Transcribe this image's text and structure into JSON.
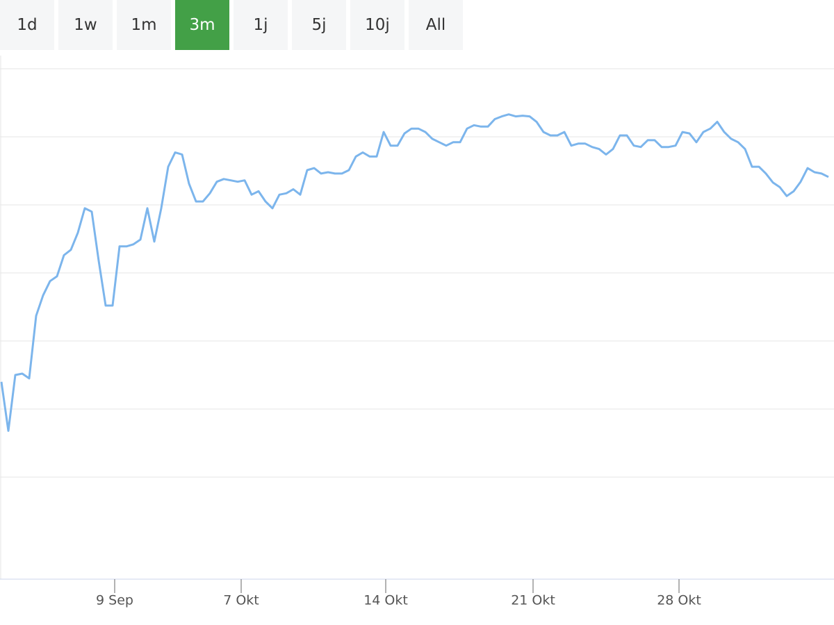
{
  "range_buttons": {
    "labels": [
      "1d",
      "1w",
      "1m",
      "3m",
      "1j",
      "5j",
      "10j",
      "All"
    ],
    "selected": 3,
    "color": "#43a047"
  },
  "chart_data": {
    "type": "line",
    "color": "#7cb5ec",
    "grid": true,
    "values": [
      2.9,
      2.18,
      3.0,
      3.02,
      2.95,
      3.87,
      4.17,
      4.38,
      4.45,
      4.76,
      4.84,
      5.09,
      5.45,
      5.4,
      4.68,
      4.02,
      4.02,
      4.89,
      4.89,
      4.92,
      4.99,
      5.45,
      4.96,
      5.45,
      6.06,
      6.27,
      6.24,
      5.81,
      5.55,
      5.55,
      5.67,
      5.84,
      5.88,
      5.86,
      5.84,
      5.86,
      5.65,
      5.7,
      5.55,
      5.45,
      5.65,
      5.67,
      5.73,
      5.65,
      6.01,
      6.04,
      5.96,
      5.98,
      5.96,
      5.96,
      6.01,
      6.21,
      6.27,
      6.21,
      6.21,
      6.57,
      6.37,
      6.37,
      6.55,
      6.62,
      6.62,
      6.57,
      6.47,
      6.42,
      6.37,
      6.42,
      6.42,
      6.62,
      6.67,
      6.65,
      6.65,
      6.76,
      6.8,
      6.83,
      6.8,
      6.81,
      6.8,
      6.72,
      6.57,
      6.52,
      6.52,
      6.57,
      6.37,
      6.4,
      6.4,
      6.35,
      6.32,
      6.24,
      6.32,
      6.52,
      6.52,
      6.37,
      6.35,
      6.45,
      6.45,
      6.35,
      6.35,
      6.37,
      6.57,
      6.55,
      6.42,
      6.57,
      6.62,
      6.72,
      6.57,
      6.47,
      6.42,
      6.32,
      6.06,
      6.06,
      5.96,
      5.83,
      5.76,
      5.63,
      5.7,
      5.84,
      6.04,
      5.98,
      5.96,
      5.91
    ],
    "xlim": [
      0,
      119
    ],
    "xticks": [
      {
        "value": 16.3,
        "label": "9 Sep"
      },
      {
        "value": 34.5,
        "label": "7 Okt"
      },
      {
        "value": 55.3,
        "label": "14 Okt"
      },
      {
        "value": 76.5,
        "label": "21 Okt"
      },
      {
        "value": 97.5,
        "label": "28 Okt"
      }
    ],
    "ylim": [
      0,
      7.5
    ],
    "yticks": [
      1.5,
      2.5,
      3.5,
      4.5,
      5.5,
      6.5,
      7.5
    ]
  }
}
